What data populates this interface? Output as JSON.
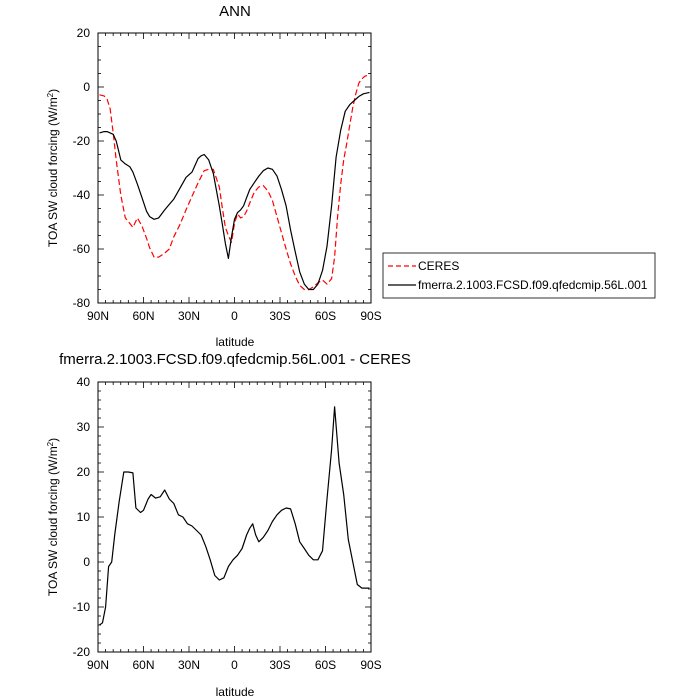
{
  "chart_data": [
    {
      "type": "line",
      "title": "ANN",
      "xlabel": "latitude",
      "ylabel": "TOA SW cloud forcing (W/m",
      "ylabel_sup": "2",
      "ylabel_close": ")",
      "xlim": [
        90,
        -90
      ],
      "ylim": [
        -80,
        20
      ],
      "xticks": [
        90,
        60,
        30,
        0,
        -30,
        -60,
        -90
      ],
      "xtick_labels": [
        "90N",
        "60N",
        "30N",
        "0",
        "30S",
        "60S",
        "90S"
      ],
      "yticks": [
        20,
        0,
        -20,
        -40,
        -60,
        -80
      ],
      "ytick_labels": [
        "20",
        "0",
        "-20",
        "-40",
        "-60",
        "-80"
      ],
      "legend_position": "right",
      "series": [
        {
          "name": "CERES",
          "color": "#ff0000",
          "dash": true,
          "x": [
            89,
            86,
            84,
            82,
            80,
            78,
            75,
            72,
            69,
            67,
            64,
            61,
            58,
            56,
            53,
            50,
            46,
            43,
            40,
            36,
            32,
            28,
            24,
            20,
            17,
            14,
            10,
            8,
            6,
            4,
            2,
            0,
            -2,
            -4,
            -6,
            -8,
            -10,
            -13,
            -16,
            -19,
            -22,
            -25,
            -28,
            -31,
            -34,
            -37,
            -40,
            -43,
            -46,
            -49,
            -52,
            -55,
            -58,
            -61,
            -64,
            -66,
            -68,
            -70,
            -72,
            -74,
            -76,
            -78,
            -80,
            -82,
            -84,
            -86,
            -89
          ],
          "y": [
            -2.9,
            -3.3,
            -4.5,
            -8.0,
            -17.0,
            -27.0,
            -40.0,
            -48.5,
            -50.5,
            -52.0,
            -48.5,
            -51.5,
            -56.0,
            -59.5,
            -63.0,
            -63.0,
            -61.5,
            -60.0,
            -55.5,
            -51.0,
            -45.5,
            -40.5,
            -35.5,
            -31.0,
            -30.5,
            -30.5,
            -37.0,
            -45.0,
            -52.0,
            -55.0,
            -57.5,
            -50.5,
            -47.0,
            -48.5,
            -48.0,
            -46.0,
            -43.0,
            -39.0,
            -37.0,
            -36.5,
            -38.5,
            -42.0,
            -48.0,
            -54.0,
            -60.0,
            -65.5,
            -70.0,
            -73.5,
            -75.0,
            -75.0,
            -74.0,
            -72.5,
            -71.5,
            -73.0,
            -71.0,
            -63.0,
            -48.0,
            -36.0,
            -27.0,
            -21.0,
            -14.0,
            -7.5,
            -2.5,
            1.5,
            3.0,
            4.0,
            4.5
          ]
        },
        {
          "name": "fmerra.2.1003.FCSD.f09.qfedcmip.56L.001",
          "color": "#000000",
          "dash": false,
          "x": [
            89,
            86,
            84,
            82,
            80,
            78,
            75,
            72,
            69,
            67,
            64,
            61,
            58,
            56,
            53,
            50,
            46,
            43,
            40,
            36,
            32,
            28,
            24,
            22,
            20,
            17,
            14,
            12,
            10,
            8,
            6,
            4,
            2,
            0,
            -2,
            -4,
            -6,
            -8,
            -10,
            -13,
            -16,
            -19,
            -22,
            -25,
            -28,
            -31,
            -34,
            -37,
            -40,
            -43,
            -46,
            -49,
            -52,
            -55,
            -58,
            -61,
            -64,
            -67,
            -70,
            -73,
            -76,
            -79,
            -82,
            -85,
            -89
          ],
          "y": [
            -17.0,
            -16.5,
            -16.5,
            -17.0,
            -17.5,
            -20.0,
            -27.0,
            -28.5,
            -29.5,
            -31.5,
            -36.0,
            -41.0,
            -46.0,
            -48.0,
            -49.0,
            -48.5,
            -45.5,
            -43.5,
            -41.5,
            -37.5,
            -33.5,
            -31.5,
            -26.5,
            -25.5,
            -25.0,
            -27.0,
            -32.0,
            -38.0,
            -44.0,
            -51.0,
            -58.0,
            -63.5,
            -55.5,
            -49.0,
            -46.5,
            -45.5,
            -44.0,
            -41.0,
            -38.0,
            -35.5,
            -33.0,
            -31.0,
            -30.0,
            -30.5,
            -33.0,
            -38.0,
            -44.0,
            -53.0,
            -61.0,
            -68.5,
            -73.0,
            -75.0,
            -75.0,
            -73.0,
            -68.0,
            -59.0,
            -44.0,
            -26.0,
            -16.0,
            -9.0,
            -6.5,
            -5.0,
            -3.5,
            -2.5,
            -2.0
          ]
        }
      ]
    },
    {
      "type": "line",
      "title": "fmerra.2.1003.FCSD.f09.qfedcmip.56L.001 - CERES",
      "xlabel": "latitude",
      "ylabel": "TOA SW cloud forcing (W/m",
      "ylabel_sup": "2",
      "ylabel_close": ")",
      "xlim": [
        90,
        -90
      ],
      "ylim": [
        -20,
        40
      ],
      "xticks": [
        90,
        60,
        30,
        0,
        -30,
        -60,
        -90
      ],
      "xtick_labels": [
        "90N",
        "60N",
        "30N",
        "0",
        "30S",
        "60S",
        "90S"
      ],
      "yticks": [
        40,
        30,
        20,
        10,
        0,
        -10,
        -20
      ],
      "ytick_labels": [
        "40",
        "30",
        "20",
        "10",
        "0",
        "-10",
        "-20"
      ],
      "series": [
        {
          "color": "#000000",
          "dash": false,
          "x": [
            89,
            87,
            85,
            83,
            81,
            79,
            76,
            73,
            70,
            67,
            65,
            62,
            60,
            57,
            55,
            52,
            49,
            46,
            43,
            40,
            37,
            34,
            31,
            28,
            25,
            22,
            19,
            16,
            13,
            10,
            7,
            4,
            1,
            -2,
            -5,
            -8,
            -10,
            -12,
            -14,
            -16,
            -19,
            -22,
            -25,
            -28,
            -31,
            -34,
            -37,
            -40,
            -43,
            -46,
            -49,
            -52,
            -55,
            -58,
            -61,
            -64,
            -66,
            -69,
            -72,
            -75,
            -78,
            -81,
            -84,
            -87,
            -89
          ],
          "y": [
            -14.0,
            -13.5,
            -10.0,
            -1.0,
            0.0,
            6.0,
            13.5,
            20.0,
            20.0,
            19.8,
            12.0,
            11.0,
            11.5,
            14.0,
            15.0,
            14.2,
            14.5,
            16.0,
            14.0,
            13.0,
            10.5,
            10.0,
            8.5,
            8.0,
            7.0,
            6.0,
            3.5,
            0.5,
            -3.0,
            -4.0,
            -3.5,
            -1.0,
            0.5,
            1.5,
            3.0,
            6.0,
            7.5,
            8.5,
            6.0,
            4.5,
            5.5,
            7.0,
            9.0,
            10.5,
            11.5,
            12.0,
            11.8,
            8.5,
            4.5,
            3.0,
            1.5,
            0.5,
            0.5,
            2.5,
            14.0,
            25.0,
            34.5,
            22.0,
            15.0,
            5.0,
            0.0,
            -5.0,
            -5.8,
            -5.8,
            -5.8
          ]
        }
      ]
    }
  ]
}
